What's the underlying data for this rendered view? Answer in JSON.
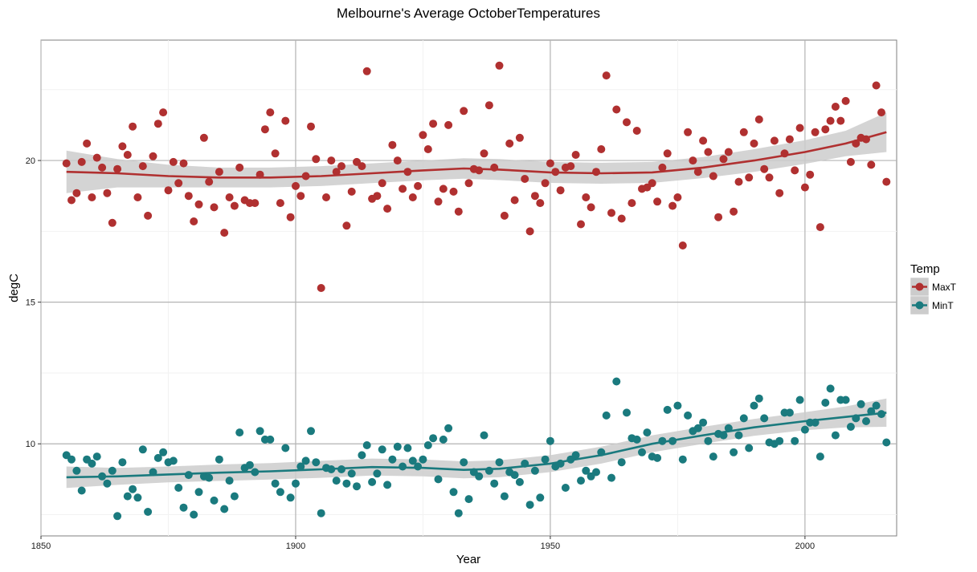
{
  "chart_data": {
    "type": "scatter",
    "title": "Melbourne's Average OctoberTemperatures",
    "xlabel": "Year",
    "ylabel": "degC",
    "xlim": [
      1850,
      2018
    ],
    "ylim": [
      6.75,
      24.25
    ],
    "x_ticks": [
      "1850",
      "1900",
      "1950",
      "2000"
    ],
    "y_ticks": [
      "10",
      "15",
      "20"
    ],
    "grid": true,
    "smoother": "loess with shaded confidence band",
    "legend": {
      "title": "Temp",
      "position": "right"
    },
    "series": [
      {
        "name": "MaxT",
        "color": "#b03030",
        "years": [
          1855,
          1856,
          1857,
          1858,
          1859,
          1860,
          1861,
          1862,
          1863,
          1864,
          1865,
          1866,
          1867,
          1868,
          1869,
          1870,
          1871,
          1872,
          1873,
          1874,
          1875,
          1876,
          1877,
          1878,
          1879,
          1880,
          1881,
          1882,
          1883,
          1884,
          1885,
          1886,
          1887,
          1888,
          1889,
          1890,
          1891,
          1892,
          1893,
          1894,
          1895,
          1896,
          1897,
          1898,
          1899,
          1900,
          1901,
          1902,
          1903,
          1904,
          1905,
          1906,
          1907,
          1908,
          1909,
          1910,
          1911,
          1912,
          1913,
          1914,
          1915,
          1916,
          1917,
          1918,
          1919,
          1920,
          1921,
          1922,
          1923,
          1924,
          1925,
          1926,
          1927,
          1928,
          1929,
          1930,
          1931,
          1932,
          1933,
          1934,
          1935,
          1936,
          1937,
          1938,
          1939,
          1940,
          1941,
          1942,
          1943,
          1944,
          1945,
          1946,
          1947,
          1948,
          1949,
          1950,
          1951,
          1952,
          1953,
          1954,
          1955,
          1956,
          1957,
          1958,
          1959,
          1960,
          1961,
          1962,
          1963,
          1964,
          1965,
          1966,
          1967,
          1968,
          1969,
          1970,
          1971,
          1972,
          1973,
          1974,
          1975,
          1976,
          1977,
          1978,
          1979,
          1980,
          1981,
          1982,
          1983,
          1984,
          1985,
          1986,
          1987,
          1988,
          1989,
          1990,
          1991,
          1992,
          1993,
          1994,
          1995,
          1996,
          1997,
          1998,
          1999,
          2000,
          2001,
          2002,
          2003,
          2004,
          2005,
          2006,
          2007,
          2008,
          2009,
          2010,
          2011,
          2012,
          2013,
          2014,
          2015,
          2016
        ],
        "values": [
          19.9,
          18.6,
          18.85,
          19.95,
          20.6,
          18.7,
          20.1,
          19.75,
          18.85,
          17.8,
          19.7,
          20.5,
          20.2,
          21.2,
          18.7,
          19.8,
          18.05,
          20.15,
          21.3,
          21.7,
          18.95,
          19.95,
          19.2,
          19.9,
          18.75,
          17.85,
          18.45,
          20.8,
          19.25,
          18.35,
          19.6,
          17.45,
          18.7,
          18.4,
          19.75,
          18.6,
          18.5,
          18.5,
          19.5,
          21.1,
          21.7,
          20.25,
          18.5,
          21.4,
          18.0,
          19.1,
          18.75,
          19.45,
          21.2,
          20.05,
          15.5,
          18.7,
          20.0,
          19.6,
          19.8,
          17.7,
          18.9,
          19.95,
          19.8,
          23.15,
          18.65,
          18.75,
          19.2,
          18.3,
          20.55,
          20.0,
          19.0,
          19.6,
          18.7,
          19.1,
          20.9,
          20.4,
          21.3,
          18.55,
          19.0,
          21.25,
          18.9,
          18.2,
          21.75,
          19.2,
          19.7,
          19.65,
          20.25,
          21.95,
          19.75,
          23.35,
          18.05,
          20.6,
          18.6,
          20.8,
          19.35,
          17.5,
          18.75,
          18.5,
          19.2,
          19.9,
          19.6,
          18.95,
          19.75,
          19.8,
          20.2,
          17.75,
          18.7,
          18.35,
          19.6,
          20.4,
          23.0,
          18.15,
          21.8,
          17.95,
          21.35,
          18.5,
          21.05,
          19.0,
          19.05,
          19.2,
          18.55,
          19.75,
          20.25,
          18.4,
          18.7,
          17.0,
          21.0,
          20.0,
          19.6,
          20.7,
          20.3,
          19.45,
          18.0,
          20.05,
          20.3,
          18.2,
          19.25,
          21.0,
          19.4,
          20.6,
          21.45,
          19.7,
          19.4,
          20.7,
          18.85,
          20.25,
          20.75,
          19.65,
          21.15,
          19.05,
          19.5,
          21.0,
          17.65,
          21.1,
          21.4,
          21.9,
          21.4,
          22.1,
          19.95,
          20.6,
          20.8,
          20.75,
          19.85,
          22.65,
          21.7,
          19.25
        ],
        "trend": [
          [
            1855,
            19.6
          ],
          [
            1865,
            19.55
          ],
          [
            1875,
            19.45
          ],
          [
            1885,
            19.4
          ],
          [
            1895,
            19.4
          ],
          [
            1905,
            19.45
          ],
          [
            1915,
            19.55
          ],
          [
            1925,
            19.65
          ],
          [
            1933,
            19.72
          ],
          [
            1940,
            19.68
          ],
          [
            1950,
            19.58
          ],
          [
            1960,
            19.55
          ],
          [
            1970,
            19.58
          ],
          [
            1980,
            19.75
          ],
          [
            1990,
            20.0
          ],
          [
            2000,
            20.3
          ],
          [
            2008,
            20.6
          ],
          [
            2016,
            21.0
          ]
        ],
        "band_upper": [
          [
            1855,
            20.35
          ],
          [
            1865,
            20.05
          ],
          [
            1875,
            19.85
          ],
          [
            1885,
            19.75
          ],
          [
            1895,
            19.75
          ],
          [
            1905,
            19.8
          ],
          [
            1915,
            19.9
          ],
          [
            1925,
            20.0
          ],
          [
            1933,
            20.08
          ],
          [
            1940,
            20.05
          ],
          [
            1950,
            19.95
          ],
          [
            1960,
            19.92
          ],
          [
            1970,
            19.95
          ],
          [
            1980,
            20.12
          ],
          [
            1990,
            20.4
          ],
          [
            2000,
            20.72
          ],
          [
            2008,
            21.05
          ],
          [
            2016,
            21.7
          ]
        ],
        "band_lower": [
          [
            1855,
            18.85
          ],
          [
            1865,
            19.05
          ],
          [
            1875,
            19.05
          ],
          [
            1885,
            19.05
          ],
          [
            1895,
            19.05
          ],
          [
            1905,
            19.1
          ],
          [
            1915,
            19.2
          ],
          [
            1925,
            19.3
          ],
          [
            1933,
            19.36
          ],
          [
            1940,
            19.31
          ],
          [
            1950,
            19.21
          ],
          [
            1960,
            19.18
          ],
          [
            1970,
            19.21
          ],
          [
            1980,
            19.38
          ],
          [
            1990,
            19.6
          ],
          [
            2000,
            19.88
          ],
          [
            2008,
            20.15
          ],
          [
            2016,
            20.3
          ]
        ]
      },
      {
        "name": "MinT",
        "color": "#1a7a7e",
        "years": [
          1855,
          1856,
          1857,
          1858,
          1859,
          1860,
          1861,
          1862,
          1863,
          1864,
          1865,
          1866,
          1867,
          1868,
          1869,
          1870,
          1871,
          1872,
          1873,
          1874,
          1875,
          1876,
          1877,
          1878,
          1879,
          1880,
          1881,
          1882,
          1883,
          1884,
          1885,
          1886,
          1887,
          1888,
          1889,
          1890,
          1891,
          1892,
          1893,
          1894,
          1895,
          1896,
          1897,
          1898,
          1899,
          1900,
          1901,
          1902,
          1903,
          1904,
          1905,
          1906,
          1907,
          1908,
          1909,
          1910,
          1911,
          1912,
          1913,
          1914,
          1915,
          1916,
          1917,
          1918,
          1919,
          1920,
          1921,
          1922,
          1923,
          1924,
          1925,
          1926,
          1927,
          1928,
          1929,
          1930,
          1931,
          1932,
          1933,
          1934,
          1935,
          1936,
          1937,
          1938,
          1939,
          1940,
          1941,
          1942,
          1943,
          1944,
          1945,
          1946,
          1947,
          1948,
          1949,
          1950,
          1951,
          1952,
          1953,
          1954,
          1955,
          1956,
          1957,
          1958,
          1959,
          1960,
          1961,
          1962,
          1963,
          1964,
          1965,
          1966,
          1967,
          1968,
          1969,
          1970,
          1971,
          1972,
          1973,
          1974,
          1975,
          1976,
          1977,
          1978,
          1979,
          1980,
          1981,
          1982,
          1983,
          1984,
          1985,
          1986,
          1987,
          1988,
          1989,
          1990,
          1991,
          1992,
          1993,
          1994,
          1995,
          1996,
          1997,
          1998,
          1999,
          2000,
          2001,
          2002,
          2003,
          2004,
          2005,
          2006,
          2007,
          2008,
          2009,
          2010,
          2011,
          2012,
          2013,
          2014,
          2015,
          2016
        ],
        "values": [
          9.6,
          9.45,
          9.05,
          8.35,
          9.45,
          9.3,
          9.55,
          8.85,
          8.6,
          9.05,
          7.45,
          9.35,
          8.15,
          8.4,
          8.1,
          9.8,
          7.6,
          9.0,
          9.5,
          9.7,
          9.35,
          9.4,
          8.45,
          7.75,
          8.9,
          7.5,
          8.3,
          8.85,
          8.8,
          8.0,
          9.45,
          7.7,
          8.7,
          8.15,
          10.4,
          9.15,
          9.25,
          9.0,
          10.45,
          10.15,
          10.15,
          8.6,
          8.3,
          9.85,
          8.1,
          8.6,
          9.2,
          9.4,
          10.45,
          9.35,
          7.55,
          9.15,
          9.1,
          8.7,
          9.1,
          8.6,
          8.95,
          8.5,
          9.6,
          9.95,
          8.65,
          8.95,
          9.8,
          8.55,
          9.45,
          9.9,
          9.2,
          9.85,
          9.4,
          9.2,
          9.45,
          9.95,
          10.2,
          8.75,
          10.15,
          10.55,
          8.3,
          7.55,
          9.35,
          8.05,
          9.0,
          8.85,
          10.3,
          9.05,
          8.6,
          9.35,
          8.15,
          9.0,
          8.9,
          8.65,
          9.3,
          7.85,
          9.05,
          8.1,
          9.45,
          10.1,
          9.2,
          9.3,
          8.45,
          9.45,
          9.6,
          8.7,
          9.05,
          8.85,
          9.0,
          9.7,
          11.0,
          8.8,
          12.2,
          9.35,
          11.1,
          10.2,
          10.15,
          9.7,
          10.4,
          9.55,
          9.5,
          10.1,
          11.2,
          10.1,
          11.35,
          9.45,
          11.0,
          10.45,
          10.55,
          10.75,
          10.1,
          9.55,
          10.35,
          10.3,
          10.55,
          9.7,
          10.3,
          10.9,
          9.85,
          11.35,
          11.6,
          10.9,
          10.05,
          10.0,
          10.1,
          11.1,
          11.1,
          10.1,
          11.55,
          10.5,
          10.75,
          10.75,
          9.55,
          11.45,
          11.95,
          10.3,
          11.55,
          11.55,
          10.6,
          10.9,
          11.4,
          10.8,
          11.15,
          11.35,
          11.05,
          10.05
        ],
        "trend": [
          [
            1855,
            8.82
          ],
          [
            1865,
            8.85
          ],
          [
            1875,
            8.92
          ],
          [
            1885,
            8.98
          ],
          [
            1895,
            9.03
          ],
          [
            1905,
            9.1
          ],
          [
            1915,
            9.18
          ],
          [
            1925,
            9.15
          ],
          [
            1933,
            9.08
          ],
          [
            1940,
            9.12
          ],
          [
            1950,
            9.3
          ],
          [
            1960,
            9.6
          ],
          [
            1970,
            10.0
          ],
          [
            1980,
            10.3
          ],
          [
            1990,
            10.58
          ],
          [
            2000,
            10.8
          ],
          [
            2008,
            10.95
          ],
          [
            2016,
            11.1
          ]
        ],
        "band_upper": [
          [
            1855,
            9.2
          ],
          [
            1865,
            9.15
          ],
          [
            1875,
            9.2
          ],
          [
            1885,
            9.27
          ],
          [
            1895,
            9.32
          ],
          [
            1905,
            9.4
          ],
          [
            1915,
            9.48
          ],
          [
            1925,
            9.45
          ],
          [
            1933,
            9.38
          ],
          [
            1940,
            9.42
          ],
          [
            1950,
            9.6
          ],
          [
            1960,
            9.9
          ],
          [
            1970,
            10.3
          ],
          [
            1980,
            10.6
          ],
          [
            1990,
            10.88
          ],
          [
            2000,
            11.12
          ],
          [
            2008,
            11.32
          ],
          [
            2016,
            11.6
          ]
        ],
        "band_lower": [
          [
            1855,
            8.44
          ],
          [
            1865,
            8.55
          ],
          [
            1875,
            8.64
          ],
          [
            1885,
            8.69
          ],
          [
            1895,
            8.74
          ],
          [
            1905,
            8.8
          ],
          [
            1915,
            8.88
          ],
          [
            1925,
            8.85
          ],
          [
            1933,
            8.78
          ],
          [
            1940,
            8.82
          ],
          [
            1950,
            9.0
          ],
          [
            1960,
            9.3
          ],
          [
            1970,
            9.7
          ],
          [
            1980,
            10.0
          ],
          [
            1990,
            10.28
          ],
          [
            2000,
            10.48
          ],
          [
            2008,
            10.58
          ],
          [
            2016,
            10.6
          ]
        ]
      }
    ]
  }
}
